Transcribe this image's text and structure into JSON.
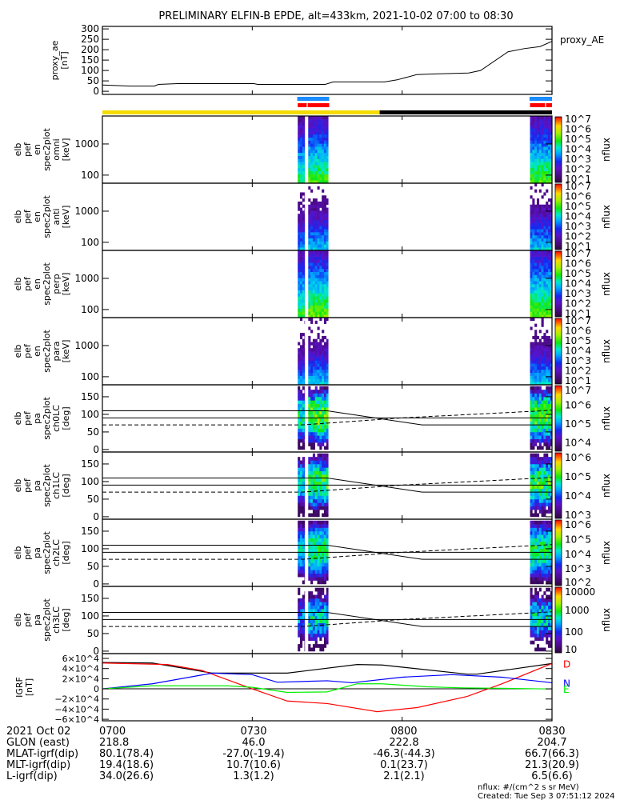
{
  "title": "PRELIMINARY ELFIN-B EPDE, alt=433km, 2021-10-02 07:00 to 08:30",
  "colors": {
    "sci_zone": "#1a8cff",
    "science_red": "#ff0000",
    "day": "#f5dc00",
    "night": "#000000"
  },
  "chart_data": {
    "type": "multi-panel timeseries/spectrogram",
    "time_range_min": [
      0,
      90
    ],
    "time_labels": [
      "0700",
      "0730",
      "0800",
      "0830"
    ],
    "ae": {
      "ylabel": [
        "proxy_ae",
        "[nT]"
      ],
      "legend": "proxy_AE",
      "ylim": [
        -15,
        312
      ],
      "ticks": [
        0,
        50,
        100,
        150,
        200,
        250,
        300
      ],
      "tick_labels": [
        "0",
        "50",
        "100",
        "150",
        "200",
        "250",
        "300"
      ],
      "t": [
        0,
        5.6,
        10.4,
        11.2,
        15.1,
        30.3,
        31.1,
        44.6,
        46.2,
        56.5,
        59,
        62.9,
        66.1,
        73.3,
        75.7,
        81.2,
        84.4,
        87.6,
        90
      ],
      "values": [
        30,
        25,
        25,
        33,
        37,
        37,
        33,
        33,
        45,
        45,
        55,
        80,
        83,
        88,
        100,
        190,
        205,
        215,
        240
      ]
    },
    "bars": {
      "blue": [
        [
          39.0,
          45.4
        ],
        [
          85.5,
          90
        ]
      ],
      "red": [
        [
          39.1,
          40.9
        ],
        [
          41.1,
          45.4
        ],
        [
          85.6,
          88.6
        ],
        [
          88.8,
          90
        ]
      ],
      "day": [
        [
          0,
          55.5
        ]
      ],
      "night": [
        [
          55.5,
          90
        ]
      ]
    },
    "energy_panels": [
      {
        "ylabel": [
          "elb",
          "pef",
          "en",
          "spec2plot",
          "omni",
          "[keV]"
        ],
        "peak": 5.1,
        "slope": 1.45,
        "cbar": [
          1,
          7.1
        ]
      },
      {
        "ylabel": [
          "elb",
          "pef",
          "en",
          "spec2plot",
          "anti",
          "[keV]"
        ],
        "peak": 4.0,
        "slope": 1.6,
        "cbar": [
          1,
          7.1
        ]
      },
      {
        "ylabel": [
          "elb",
          "pef",
          "en",
          "spec2plot",
          "perp",
          "[keV]"
        ],
        "peak": 5.3,
        "slope": 1.45,
        "cbar": [
          1,
          7.1
        ]
      },
      {
        "ylabel": [
          "elb",
          "pef",
          "en",
          "spec2plot",
          "para",
          "[keV]"
        ],
        "peak": 4.0,
        "slope": 1.7,
        "cbar": [
          1,
          7.1
        ]
      }
    ],
    "energy_ylim": [
      55,
      7900
    ],
    "energy_ticks": [
      100,
      1000
    ],
    "energy_tick_labels": [
      "100",
      "1000"
    ],
    "energy_cbar_labels": [
      [
        "10^7",
        7
      ],
      [
        "10^6",
        6
      ],
      [
        "10^5",
        5
      ],
      [
        "10^4",
        4
      ],
      [
        "10^3",
        3
      ],
      [
        "10^2",
        2
      ],
      [
        "10^1",
        1.3
      ]
    ],
    "pa_panels": [
      {
        "ylabel": [
          "elb",
          "pef",
          "pa",
          "spec2plot",
          "ch0LC",
          "[deg]"
        ],
        "peak": 5.9,
        "cbar": [
          3.5,
          7.1
        ],
        "cbar_labels": [
          [
            "10^7",
            7
          ],
          [
            "10^6",
            6
          ],
          [
            "10^5",
            5
          ],
          [
            "10^4",
            4
          ]
        ]
      },
      {
        "ylabel": [
          "elb",
          "pef",
          "pa",
          "spec2plot",
          "ch1LC",
          "[deg]"
        ],
        "peak": 5.0,
        "cbar": [
          2.8,
          6.3
        ],
        "cbar_labels": [
          [
            "10^6",
            6
          ],
          [
            "10^5",
            5
          ],
          [
            "10^4",
            4
          ],
          [
            "10^3",
            3
          ]
        ]
      },
      {
        "ylabel": [
          "elb",
          "pef",
          "pa",
          "spec2plot",
          "ch2LC",
          "[deg]"
        ],
        "peak": 4.5,
        "cbar": [
          1.8,
          6.4
        ],
        "cbar_labels": [
          [
            "10^6",
            6.2
          ],
          [
            "10^5",
            5
          ],
          [
            "10^4",
            4
          ],
          [
            "10^3",
            3
          ],
          [
            "10^2",
            2
          ]
        ]
      },
      {
        "ylabel": [
          "elb",
          "pef",
          "pa",
          "spec2plot",
          "ch3LC",
          "[deg]"
        ],
        "peak": 2.6,
        "cbar": [
          1,
          4.1
        ],
        "cbar_labels": [
          [
            "10000",
            4
          ],
          [
            "1000",
            3
          ],
          [
            "100",
            2
          ],
          [
            "10",
            1
          ]
        ]
      }
    ],
    "pa_ylim": [
      -7,
      184
    ],
    "pa_ticks": [
      0,
      50,
      100,
      150
    ],
    "pa_tick_labels": [
      "0",
      "50",
      "100",
      "150"
    ],
    "pa_lines": {
      "solid_1": {
        "t": [
          0,
          45,
          64,
          90
        ],
        "values": [
          110,
          110,
          70,
          70
        ]
      },
      "solid_2": {
        "t": [
          0,
          90
        ],
        "values": [
          90,
          90
        ]
      },
      "dashed": {
        "t": [
          0,
          40,
          60,
          88,
          90
        ],
        "values": [
          70,
          70,
          90,
          110,
          112
        ]
      }
    },
    "spectra_time_blocks": [
      [
        39.1,
        40.5
      ],
      [
        41.2,
        45.2
      ],
      [
        85.6,
        90
      ]
    ],
    "colorbar_label": "nflux",
    "igrf": {
      "ylabel": [
        "IGRF",
        "[nT]"
      ],
      "ylim": [
        -6.3,
        6.95
      ],
      "unit": "1e4 nT",
      "ticks": [
        6,
        4,
        2,
        0,
        -2,
        -4,
        -6
      ],
      "tick_labels": [
        "6×10^4",
        "4×10^4",
        "2×10^4",
        "0",
        "−2×10^4",
        "−4×10^4",
        "−6×10^4"
      ],
      "series": [
        {
          "name": "total",
          "legend": "",
          "color": "#000000",
          "t": [
            0,
            10,
            22,
            37,
            51,
            56,
            73,
            75,
            90
          ],
          "values": [
            5.2,
            5.1,
            3.1,
            3.1,
            4.8,
            4.7,
            2.9,
            2.9,
            5.0
          ]
        },
        {
          "name": "D",
          "legend": "D",
          "color": "#ff0000",
          "t": [
            0,
            13,
            20,
            30,
            37,
            45,
            55,
            63,
            73,
            80,
            90
          ],
          "values": [
            5.1,
            4.8,
            3.6,
            0,
            -2.4,
            -2.9,
            -4.5,
            -3.7,
            -1.5,
            1.0,
            5.0
          ]
        },
        {
          "name": "N",
          "legend": "N",
          "color": "#0000ff",
          "t": [
            0,
            10,
            22,
            30,
            35,
            45,
            50,
            60,
            70,
            80,
            90
          ],
          "values": [
            0,
            1.0,
            3.1,
            2.8,
            1.3,
            1.6,
            1.2,
            2.3,
            2.8,
            2.3,
            1.2
          ]
        },
        {
          "name": "E",
          "legend": "E",
          "color": "#00ee00",
          "t": [
            0,
            10,
            25,
            30,
            37,
            45,
            51,
            56,
            65,
            72,
            88,
            90
          ],
          "values": [
            0,
            0.6,
            0.6,
            0.3,
            -0.7,
            -0.6,
            1.0,
            1.0,
            0.4,
            0.2,
            0,
            0
          ]
        }
      ]
    }
  },
  "orbit_table": {
    "date_label": "2021 Oct 02",
    "rows": [
      {
        "label": "GLON (east)",
        "values": [
          "218.8",
          "46.0",
          "222.8",
          "204.7"
        ]
      },
      {
        "label": "MLAT-igrf(dip)",
        "values": [
          "80.1(78.4)",
          "-27.0(-19.4)",
          "-46.3(-44.3)",
          "66.7(66.3)"
        ]
      },
      {
        "label": "MLT-igrf(dip)",
        "values": [
          "19.4(18.6)",
          "10.7(10.6)",
          "0.1(23.7)",
          "21.3(20.9)"
        ]
      },
      {
        "label": "L-igrf(dip)",
        "values": [
          "34.0(26.6)",
          "1.3(1.2)",
          "2.1(2.1)",
          "6.5(6.6)"
        ]
      }
    ]
  },
  "footer": {
    "units": "nflux: #/(cm^2 s sr MeV)",
    "created": "Created: Tue Sep  3 07:51:12 2024"
  }
}
